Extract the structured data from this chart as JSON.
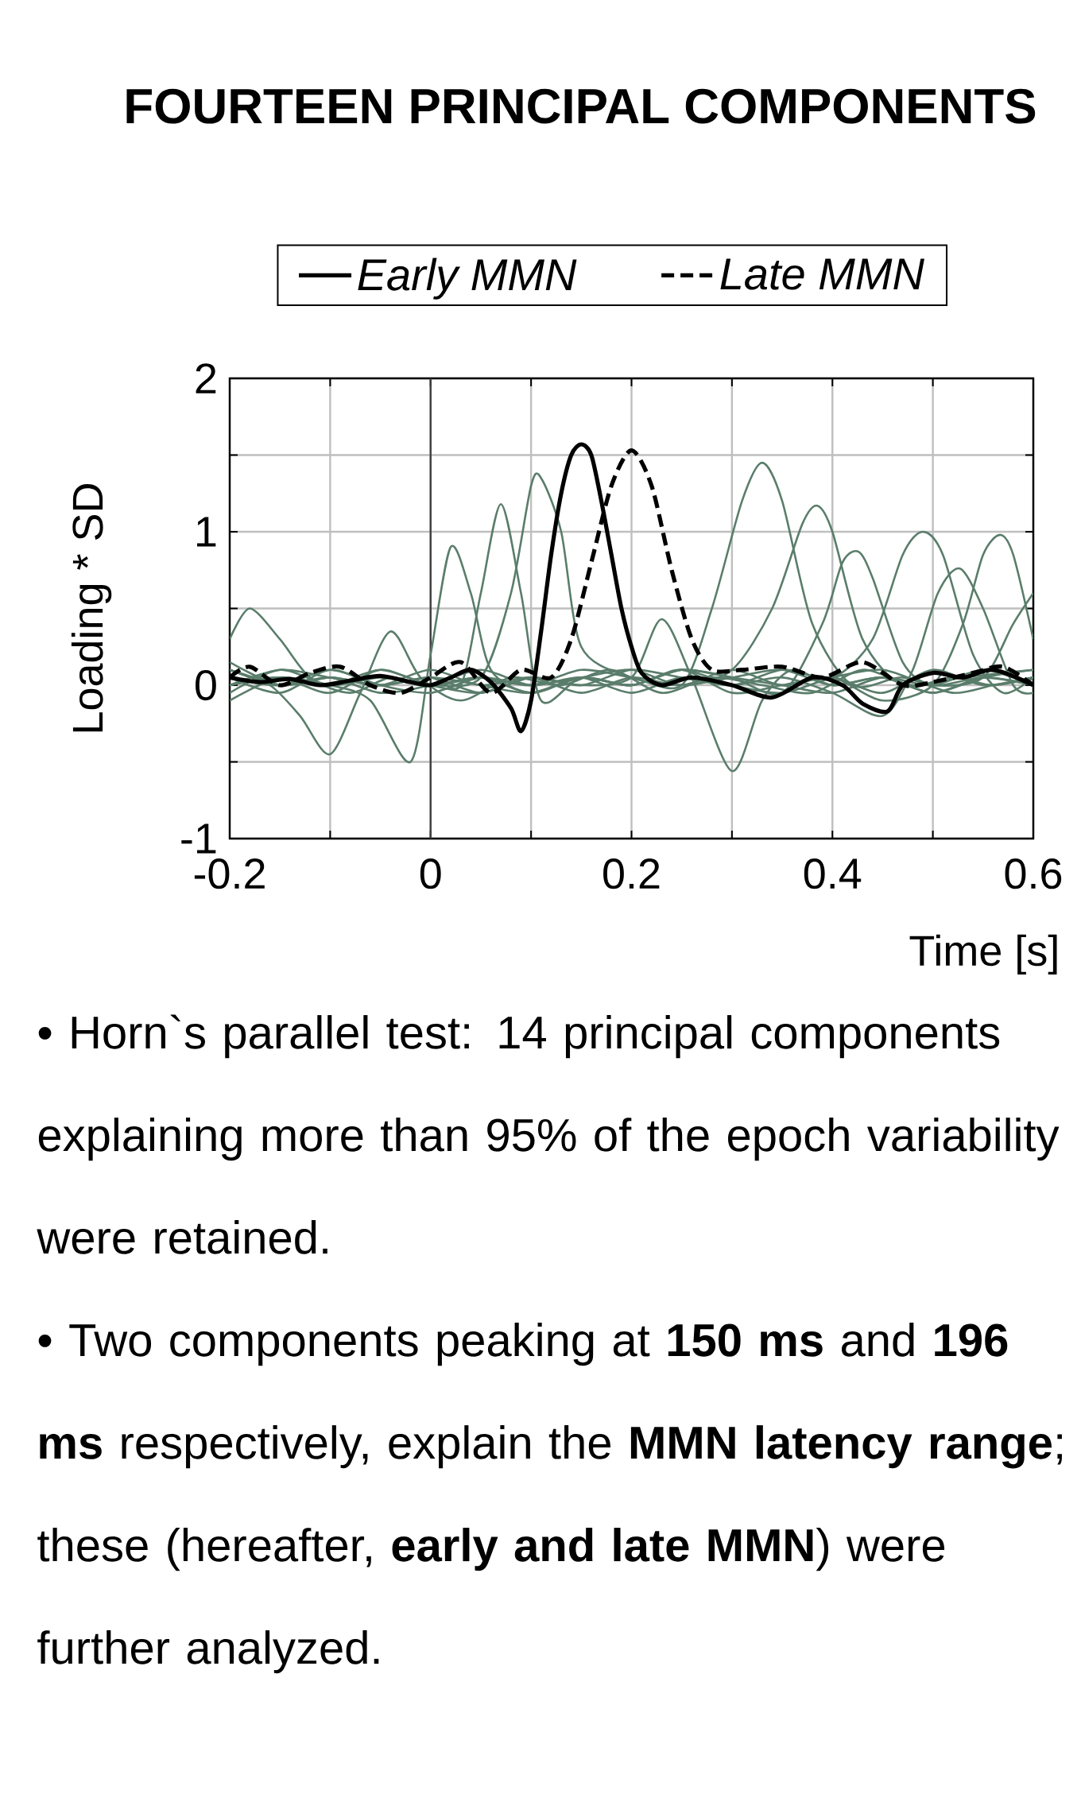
{
  "chart_data": {
    "type": "line",
    "title": "FOURTEEN PRINCIPAL COMPONENTS",
    "xlabel": "Time [s]",
    "ylabel": "Loading * SD",
    "xlim": [
      -0.2,
      0.6
    ],
    "ylim": [
      -1,
      2
    ],
    "xticks": [
      -0.2,
      {
        "value": -0.1,
        "label": null
      },
      0,
      {
        "value": 0.1,
        "label": null
      },
      0.2,
      {
        "value": 0.3,
        "label": null
      },
      0.4,
      {
        "value": 0.5,
        "label": null
      },
      0.6
    ],
    "yticks": [
      -1,
      {
        "value": -0.5,
        "label": null
      },
      0,
      {
        "value": 0.5,
        "label": null
      },
      1,
      {
        "value": 1.5,
        "label": null
      },
      2
    ],
    "grid": true,
    "legend": "top",
    "ref_lines": [
      {
        "axis": "x",
        "value": 0,
        "color": "#404040"
      }
    ],
    "series": [
      {
        "color": "#5a7d6b",
        "x": [
          -0.2,
          -0.18,
          -0.15,
          -0.12,
          -0.08,
          -0.04,
          0.0,
          0.05,
          0.1,
          0.15,
          0.2,
          0.25,
          0.3,
          0.35,
          0.4,
          0.45,
          0.5,
          0.55,
          0.58,
          0.6
        ],
        "values": [
          0.3,
          0.5,
          0.3,
          0.05,
          -0.05,
          0.05,
          0.0,
          0.05,
          -0.05,
          0.05,
          0.0,
          0.1,
          0.0,
          -0.05,
          0.05,
          0.1,
          0.0,
          0.05,
          0.4,
          0.6
        ]
      },
      {
        "color": "#5a7d6b",
        "x": [
          -0.2,
          -0.16,
          -0.13,
          -0.1,
          -0.07,
          -0.04,
          -0.01,
          0.03,
          0.08,
          0.13,
          0.18,
          0.23,
          0.28,
          0.33,
          0.38,
          0.43,
          0.48,
          0.53,
          0.6
        ],
        "values": [
          0.1,
          0.0,
          -0.2,
          -0.45,
          -0.05,
          0.35,
          0.05,
          -0.1,
          0.05,
          0.0,
          0.1,
          -0.05,
          0.05,
          0.0,
          -0.05,
          0.1,
          0.0,
          0.05,
          0.1
        ]
      },
      {
        "color": "#5a7d6b",
        "x": [
          -0.2,
          -0.15,
          -0.1,
          -0.06,
          -0.02,
          0.0,
          0.02,
          0.04,
          0.06,
          0.1,
          0.15,
          0.2,
          0.25,
          0.3,
          0.35,
          0.4,
          0.45,
          0.5,
          0.55,
          0.6
        ],
        "values": [
          0.0,
          0.05,
          0.0,
          -0.1,
          -0.5,
          0.2,
          0.9,
          0.6,
          0.1,
          -0.05,
          0.05,
          0.0,
          0.1,
          -0.05,
          0.0,
          0.05,
          -0.05,
          0.1,
          0.0,
          0.05
        ]
      },
      {
        "color": "#5a7d6b",
        "x": [
          -0.2,
          -0.15,
          -0.1,
          -0.05,
          0.0,
          0.03,
          0.05,
          0.07,
          0.09,
          0.11,
          0.15,
          0.2,
          0.25,
          0.3,
          0.35,
          0.4,
          0.45,
          0.5,
          0.55,
          0.6
        ],
        "values": [
          0.1,
          0.0,
          0.05,
          0.0,
          0.05,
          0.0,
          0.6,
          1.18,
          0.6,
          -0.1,
          0.05,
          0.0,
          0.1,
          0.05,
          0.0,
          -0.05,
          0.05,
          0.0,
          0.1,
          0.0
        ]
      },
      {
        "color": "#5a7d6b",
        "x": [
          -0.2,
          -0.15,
          -0.1,
          -0.05,
          0.0,
          0.05,
          0.08,
          0.1,
          0.11,
          0.13,
          0.15,
          0.2,
          0.25,
          0.3,
          0.35,
          0.4,
          0.45,
          0.5,
          0.55,
          0.6
        ],
        "values": [
          -0.05,
          0.1,
          0.0,
          0.05,
          0.0,
          0.05,
          0.6,
          1.3,
          1.35,
          1.0,
          0.25,
          0.05,
          0.0,
          0.05,
          0.1,
          0.0,
          0.05,
          -0.05,
          0.05,
          0.1
        ]
      },
      {
        "color": "#5a7d6b",
        "x": [
          -0.2,
          -0.15,
          -0.1,
          -0.05,
          0.0,
          0.05,
          0.1,
          0.15,
          0.2,
          0.23,
          0.26,
          0.3,
          0.33,
          0.36,
          0.4,
          0.45,
          0.5,
          0.55,
          0.6
        ],
        "values": [
          0.05,
          -0.05,
          0.1,
          0.0,
          0.05,
          -0.05,
          0.05,
          0.0,
          0.05,
          0.43,
          0.05,
          -0.56,
          -0.1,
          0.1,
          0.0,
          0.05,
          -0.05,
          0.05,
          0.0
        ]
      },
      {
        "color": "#5a7d6b",
        "x": [
          -0.2,
          -0.15,
          -0.1,
          -0.05,
          0.0,
          0.05,
          0.1,
          0.15,
          0.2,
          0.25,
          0.28,
          0.31,
          0.33,
          0.35,
          0.38,
          0.42,
          0.47,
          0.52,
          0.56,
          0.6
        ],
        "values": [
          0.0,
          0.05,
          -0.05,
          0.1,
          0.0,
          0.05,
          0.0,
          0.1,
          0.05,
          0.0,
          0.5,
          1.2,
          1.45,
          1.2,
          0.4,
          0.0,
          0.05,
          -0.05,
          0.0,
          0.05
        ]
      },
      {
        "color": "#5a7d6b",
        "x": [
          -0.2,
          -0.15,
          -0.1,
          -0.05,
          0.0,
          0.05,
          0.1,
          0.15,
          0.2,
          0.25,
          0.3,
          0.34,
          0.37,
          0.385,
          0.4,
          0.43,
          0.47,
          0.52,
          0.56,
          0.6
        ],
        "values": [
          0.05,
          0.0,
          0.1,
          0.0,
          -0.05,
          0.05,
          0.0,
          0.05,
          0.1,
          0.0,
          0.1,
          0.5,
          1.05,
          1.17,
          1.0,
          0.3,
          0.0,
          0.05,
          0.0,
          0.05
        ]
      },
      {
        "color": "#5a7d6b",
        "x": [
          -0.2,
          -0.15,
          -0.1,
          -0.05,
          0.0,
          0.05,
          0.1,
          0.15,
          0.2,
          0.25,
          0.3,
          0.35,
          0.39,
          0.41,
          0.426,
          0.44,
          0.47,
          0.5,
          0.55,
          0.6
        ],
        "values": [
          0.0,
          0.1,
          0.05,
          0.0,
          0.05,
          0.0,
          -0.05,
          0.05,
          0.0,
          0.1,
          0.05,
          -0.05,
          0.4,
          0.8,
          0.87,
          0.7,
          0.15,
          0.0,
          0.05,
          0.0
        ]
      },
      {
        "color": "#5a7d6b",
        "x": [
          -0.2,
          -0.15,
          -0.1,
          -0.05,
          0.0,
          0.05,
          0.1,
          0.15,
          0.2,
          0.25,
          0.3,
          0.35,
          0.4,
          0.44,
          0.47,
          0.49,
          0.51,
          0.54,
          0.57,
          0.6
        ],
        "values": [
          0.1,
          0.0,
          0.05,
          -0.05,
          0.0,
          0.1,
          0.0,
          0.05,
          -0.05,
          0.05,
          0.0,
          0.1,
          0.05,
          0.3,
          0.85,
          1.0,
          0.85,
          0.2,
          -0.05,
          0.05
        ]
      },
      {
        "color": "#5a7d6b",
        "x": [
          -0.2,
          -0.15,
          -0.1,
          -0.05,
          0.0,
          0.05,
          0.1,
          0.15,
          0.2,
          0.25,
          0.3,
          0.35,
          0.4,
          0.45,
          0.48,
          0.505,
          0.527,
          0.55,
          0.58,
          0.6
        ],
        "values": [
          -0.1,
          0.05,
          0.0,
          0.1,
          0.0,
          -0.05,
          0.05,
          0.0,
          0.1,
          0.05,
          0.0,
          0.05,
          -0.05,
          -0.2,
          0.1,
          0.6,
          0.76,
          0.5,
          0.0,
          -0.05
        ]
      },
      {
        "color": "#5a7d6b",
        "x": [
          -0.2,
          -0.15,
          -0.1,
          -0.05,
          0.0,
          0.05,
          0.1,
          0.15,
          0.2,
          0.25,
          0.3,
          0.35,
          0.4,
          0.45,
          0.5,
          0.53,
          0.55,
          0.567,
          0.58,
          0.6
        ],
        "values": [
          0.15,
          0.0,
          0.05,
          0.0,
          0.1,
          0.0,
          0.05,
          -0.05,
          0.05,
          0.0,
          0.1,
          0.0,
          0.05,
          -0.1,
          0.0,
          0.4,
          0.85,
          0.98,
          0.85,
          0.3
        ]
      },
      {
        "name": "Early MMN",
        "color": "#000000",
        "line_style": "solid",
        "x": [
          -0.2,
          -0.17,
          -0.14,
          -0.11,
          -0.08,
          -0.05,
          -0.02,
          0.0,
          0.02,
          0.04,
          0.06,
          0.08,
          0.09,
          0.1,
          0.11,
          0.12,
          0.13,
          0.14,
          0.15,
          0.16,
          0.17,
          0.18,
          0.19,
          0.2,
          0.21,
          0.23,
          0.26,
          0.3,
          0.34,
          0.38,
          0.41,
          0.43,
          0.455,
          0.47,
          0.5,
          0.53,
          0.56,
          0.6
        ],
        "values": [
          0.05,
          0.02,
          0.04,
          0.0,
          0.03,
          0.06,
          0.02,
          0.0,
          0.05,
          0.1,
          0.02,
          -0.15,
          -0.3,
          -0.1,
          0.35,
          0.85,
          1.25,
          1.5,
          1.57,
          1.5,
          1.2,
          0.85,
          0.5,
          0.25,
          0.08,
          0.0,
          0.05,
          0.0,
          -0.08,
          0.05,
          0.0,
          -0.12,
          -0.17,
          0.0,
          0.08,
          0.05,
          0.1,
          0.0
        ]
      },
      {
        "name": "Late MMN",
        "color": "#000000",
        "line_style": "dashed",
        "x": [
          -0.2,
          -0.18,
          -0.15,
          -0.12,
          -0.09,
          -0.06,
          -0.03,
          0.0,
          0.03,
          0.06,
          0.09,
          0.12,
          0.14,
          0.16,
          0.18,
          0.2,
          0.22,
          0.24,
          0.26,
          0.28,
          0.31,
          0.35,
          0.39,
          0.43,
          0.47,
          0.5,
          0.54,
          0.57,
          0.6
        ],
        "values": [
          0.05,
          0.12,
          0.0,
          0.08,
          0.12,
          0.0,
          -0.05,
          0.05,
          0.15,
          -0.05,
          0.1,
          0.05,
          0.3,
          0.8,
          1.3,
          1.53,
          1.3,
          0.75,
          0.3,
          0.1,
          0.1,
          0.12,
          0.05,
          0.15,
          0.0,
          0.02,
          0.08,
          0.12,
          0.0
        ]
      }
    ],
    "annotations": [
      "• Horn`s parallel test: 14 principal components explaining more than 95% of the epoch variability were retained.",
      "• Two components peaking at **150 ms** and **196 ms** respectively, explain the **MMN latency range**; these (hereafter, **early and late MMN**) were further analyzed."
    ]
  }
}
